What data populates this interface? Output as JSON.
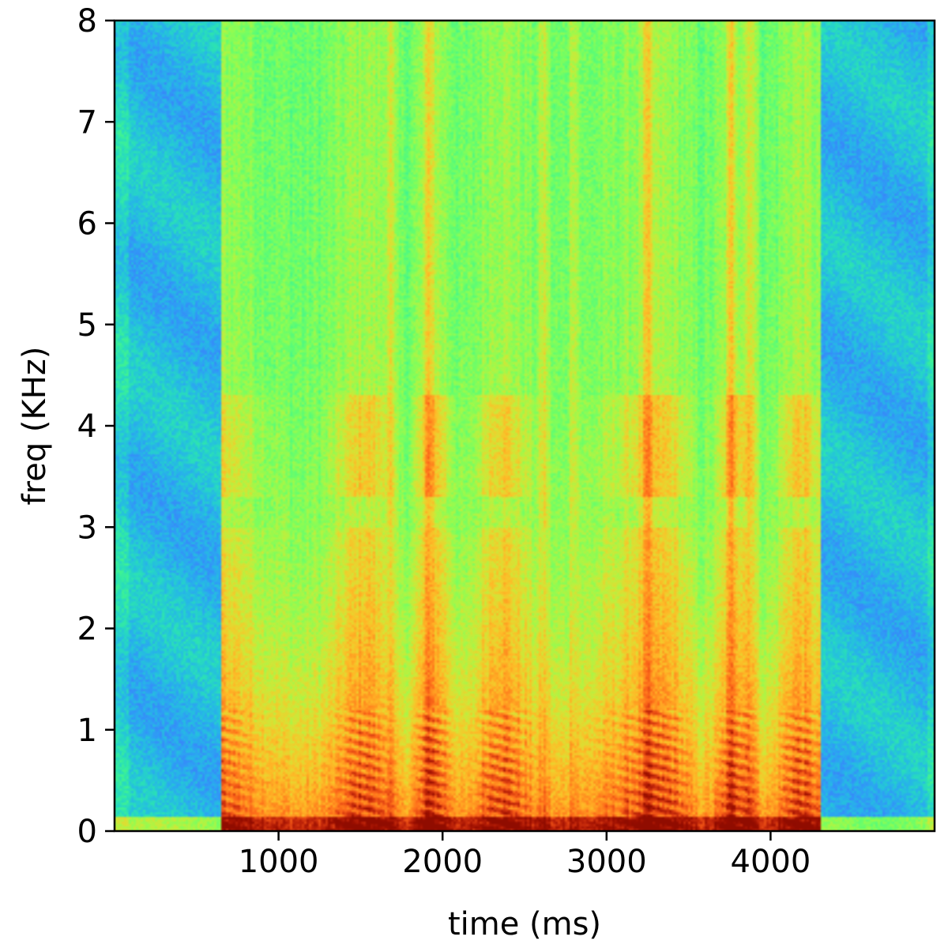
{
  "chart_data": {
    "type": "heatmap",
    "xlabel": "time (ms)",
    "ylabel": "freq (KHz)",
    "xlim": [
      0,
      5000
    ],
    "ylim": [
      0,
      8
    ],
    "x_ticks": [
      1000,
      2000,
      3000,
      4000
    ],
    "y_ticks": [
      0,
      1,
      2,
      3,
      4,
      5,
      6,
      7,
      8
    ],
    "colormap": "turbo",
    "grid": false,
    "silence_ranges_ms": [
      [
        0,
        650
      ],
      [
        4300,
        5000
      ]
    ],
    "speech_range_ms": [
      650,
      4300
    ],
    "bright_column_ms": [
      1680,
      1920,
      2620,
      2800,
      3250,
      3760,
      3880
    ],
    "formant_band_khz": [
      3.3,
      4.3
    ],
    "colors": {
      "silence": "#35b9d8",
      "mid": "#7ef05a",
      "high": "#fbb33a",
      "peak": "#c83a10"
    }
  }
}
